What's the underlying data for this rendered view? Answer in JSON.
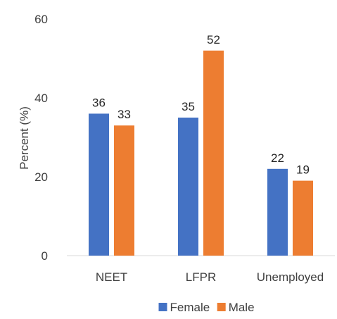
{
  "chart_data": {
    "type": "bar",
    "categories": [
      "NEET",
      "LFPR",
      "Unemployed"
    ],
    "series": [
      {
        "name": "Female",
        "values": [
          36,
          35,
          22
        ],
        "color": "#4472C4"
      },
      {
        "name": "Male",
        "values": [
          33,
          52,
          19
        ],
        "color": "#ED7D31"
      }
    ],
    "ylabel": "Percent (%)",
    "ylim": [
      0,
      60
    ],
    "yticks": [
      0,
      20,
      40,
      60
    ],
    "grid": false,
    "legend": "bottom",
    "data_labels": true
  }
}
